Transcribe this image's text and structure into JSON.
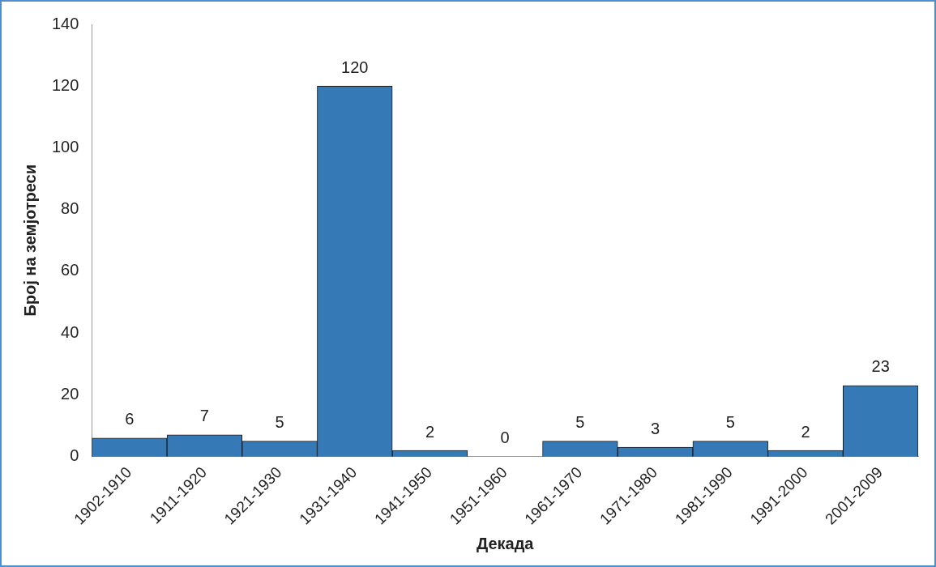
{
  "chart_data": {
    "type": "bar",
    "xlabel": "Декада",
    "ylabel": "Број на земјотреси",
    "categories": [
      "1902-1910",
      "1911-1920",
      "1921-1930",
      "1931-1940",
      "1941-1950",
      "1951-1960",
      "1961-1970",
      "1971-1980",
      "1981-1990",
      "1991-2000",
      "2001-2009"
    ],
    "values": [
      6,
      7,
      5,
      120,
      2,
      0,
      5,
      3,
      5,
      2,
      23
    ],
    "color": "#3579b6",
    "ylim": [
      0,
      140
    ],
    "yticks": [
      0,
      20,
      40,
      60,
      80,
      100,
      120,
      140
    ],
    "grid": false,
    "legend": false,
    "data_labels": true
  }
}
